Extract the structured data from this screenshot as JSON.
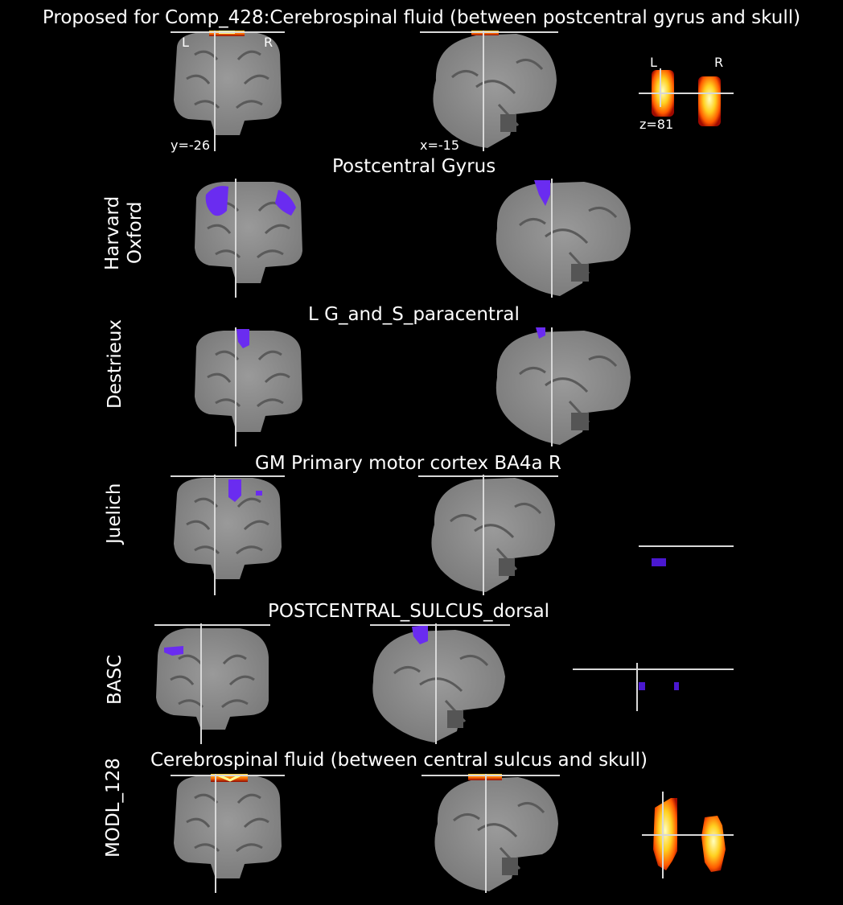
{
  "figure": {
    "title": "Proposed for Comp_428:Cerebrospinal fluid (between postcentral gyrus and skull)",
    "coords": {
      "coronal": "y=-26",
      "sagittal": "x=-15",
      "axial": "z=81"
    },
    "orientation": {
      "left": "L",
      "right": "R"
    },
    "colors": {
      "background": "#000000",
      "brain": "#8c8c8c",
      "crosshair": "#d8d8d8",
      "atlas_overlay": "#6a2cf0",
      "heat_low": "#b01000",
      "heat_mid": "#ff6a00",
      "heat_high": "#ffff70"
    }
  },
  "rows": [
    {
      "atlas": "Harvard Oxford",
      "atlas_lines": [
        "Harvard",
        "Oxford"
      ],
      "region": "Postcentral Gyrus"
    },
    {
      "atlas": "Destrieux",
      "atlas_lines": [
        "Destrieux"
      ],
      "region": "L G_and_S_paracentral"
    },
    {
      "atlas": "Juelich",
      "atlas_lines": [
        "Juelich"
      ],
      "region": "GM Primary motor cortex BA4a R"
    },
    {
      "atlas": "BASC",
      "atlas_lines": [
        "BASC"
      ],
      "region": "POSTCENTRAL_SULCUS_dorsal"
    },
    {
      "atlas": "MODL_128",
      "atlas_lines": [
        "MODL_128"
      ],
      "region": "Cerebrospinal fluid (between central sulcus and skull)"
    }
  ]
}
